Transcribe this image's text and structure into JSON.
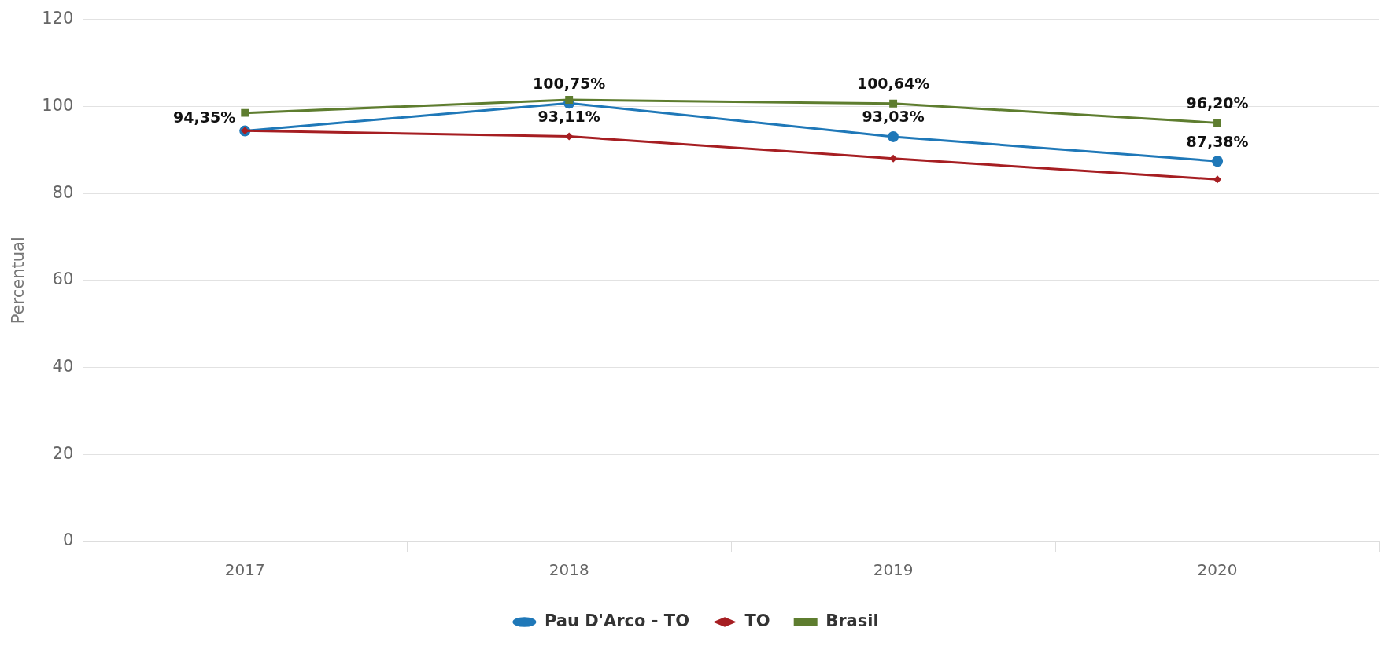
{
  "chart_data": {
    "type": "line",
    "ylabel": "Percentual",
    "categories": [
      "2017",
      "2018",
      "2019",
      "2020"
    ],
    "series": [
      {
        "name": "Pau D'Arco - TO",
        "color": "#1f78b8",
        "marker": "circle",
        "values": [
          94.35,
          100.75,
          93.03,
          87.38
        ],
        "value_labels": [
          "94,35%",
          "100,75%",
          "93,03%",
          "87,38%"
        ]
      },
      {
        "name": "TO",
        "color": "#a61e22",
        "marker": "diamond",
        "values": [
          94.4,
          93.11,
          88,
          83.2
        ],
        "value_labels": [
          null,
          "93,11%",
          null,
          null
        ]
      },
      {
        "name": "Brasil",
        "color": "#5e7d2f",
        "marker": "square",
        "values": [
          98.5,
          101.5,
          100.64,
          96.2
        ],
        "value_labels": [
          null,
          null,
          "100,64%",
          "96,20%"
        ]
      }
    ],
    "ylim": [
      0,
      120
    ],
    "yticks": [
      0,
      20,
      40,
      60,
      80,
      100,
      120
    ],
    "grid": "y",
    "legend": "bottom"
  }
}
